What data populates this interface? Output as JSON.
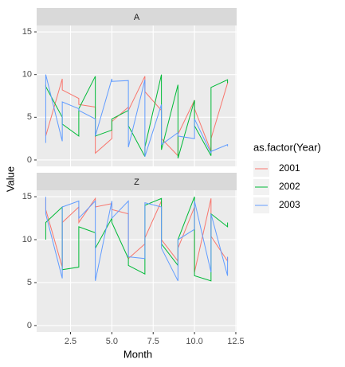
{
  "chart_data": {
    "type": "line",
    "x_label": "Month",
    "y_label": "Value",
    "legend_title": "as.factor(Year)",
    "legend": "right",
    "grid": true,
    "facets": [
      "A",
      "Z"
    ],
    "x": [
      1,
      1,
      2,
      2,
      3,
      3,
      4,
      4,
      5,
      5,
      6,
      6,
      7,
      7,
      8,
      8,
      9,
      9,
      10,
      10,
      11,
      11,
      12,
      12
    ],
    "xlim": [
      0.45,
      12.55
    ],
    "xticks": [
      2.5,
      {
        "value": 5,
        "label": "5.0"
      },
      7.5,
      {
        "value": 10,
        "label": "10.0"
      },
      12.5
    ],
    "ylim": [
      -0.75,
      15.75
    ],
    "yticks": [
      0,
      5,
      10,
      15
    ],
    "series": [
      {
        "name": "2001",
        "color": "#F8766D",
        "values": [
          [
            4.6,
            2.8,
            9.5,
            8.2,
            7.2,
            6.5,
            6.2,
            0.8,
            2.5,
            4.5,
            6.2,
            5.8,
            9.8,
            8,
            5.8,
            2.5,
            0.5,
            3,
            7,
            6,
            1,
            2.5,
            9,
            9.2
          ],
          [
            14.8,
            13.5,
            6.8,
            12,
            13.8,
            12,
            14.8,
            13.8,
            14.2,
            13.5,
            13,
            7.8,
            9.5,
            10.2,
            14.5,
            10,
            7.5,
            9,
            13.8,
            6.2,
            14.8,
            10.4,
            7.5,
            8
          ]
        ]
      },
      {
        "name": "2002",
        "color": "#00BA38",
        "values": [
          [
            8.8,
            8.6,
            5,
            4.2,
            2.8,
            6,
            9.8,
            2.8,
            3.5,
            4.8,
            5.8,
            4,
            0.4,
            1.5,
            10,
            1.2,
            8.8,
            0.2,
            7,
            4,
            0.5,
            8.5,
            9.4,
            9
          ],
          [
            10,
            12,
            13.8,
            6.5,
            6.8,
            11.5,
            10.8,
            9,
            12.5,
            12,
            7.8,
            7,
            6,
            14,
            14.8,
            9.5,
            7,
            10,
            15,
            5.8,
            5.2,
            13,
            11.5,
            12
          ]
        ]
      },
      {
        "name": "2003",
        "color": "#619CFF",
        "values": [
          [
            2,
            10,
            2.2,
            6.8,
            6,
            5.8,
            4.8,
            2.8,
            9.5,
            9.2,
            9.3,
            1.5,
            9.4,
            0.4,
            6.5,
            1.8,
            3.2,
            2.8,
            2.5,
            4.8,
            0.8,
            1,
            1.8,
            1.6
          ],
          [
            15,
            13,
            5.5,
            13.8,
            14.5,
            12.5,
            14.5,
            5.2,
            14.5,
            12.5,
            14.5,
            8,
            7.8,
            14.3,
            13.8,
            9,
            5.2,
            10,
            11.2,
            14.5,
            6.2,
            13,
            5.8,
            8
          ]
        ]
      }
    ]
  }
}
